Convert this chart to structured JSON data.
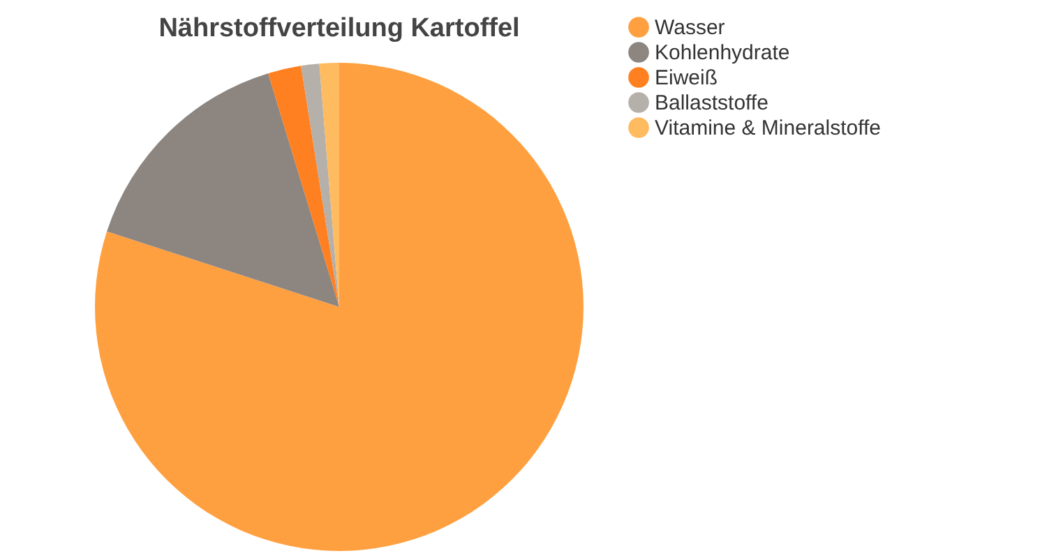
{
  "chart_data": {
    "type": "pie",
    "title": "Nährstoffverteilung Kartoffel",
    "categories": [
      "Wasser",
      "Kohlenhydrate",
      "Eiweiß",
      "Ballaststoffe",
      "Vitamine & Mineralstoffe"
    ],
    "values": [
      80,
      15.3,
      2.2,
      1.2,
      1.3
    ],
    "colors": [
      "#ffa040",
      "#8c8580",
      "#ff8020",
      "#b5b0aa",
      "#ffbb60"
    ],
    "legend": "top right"
  }
}
